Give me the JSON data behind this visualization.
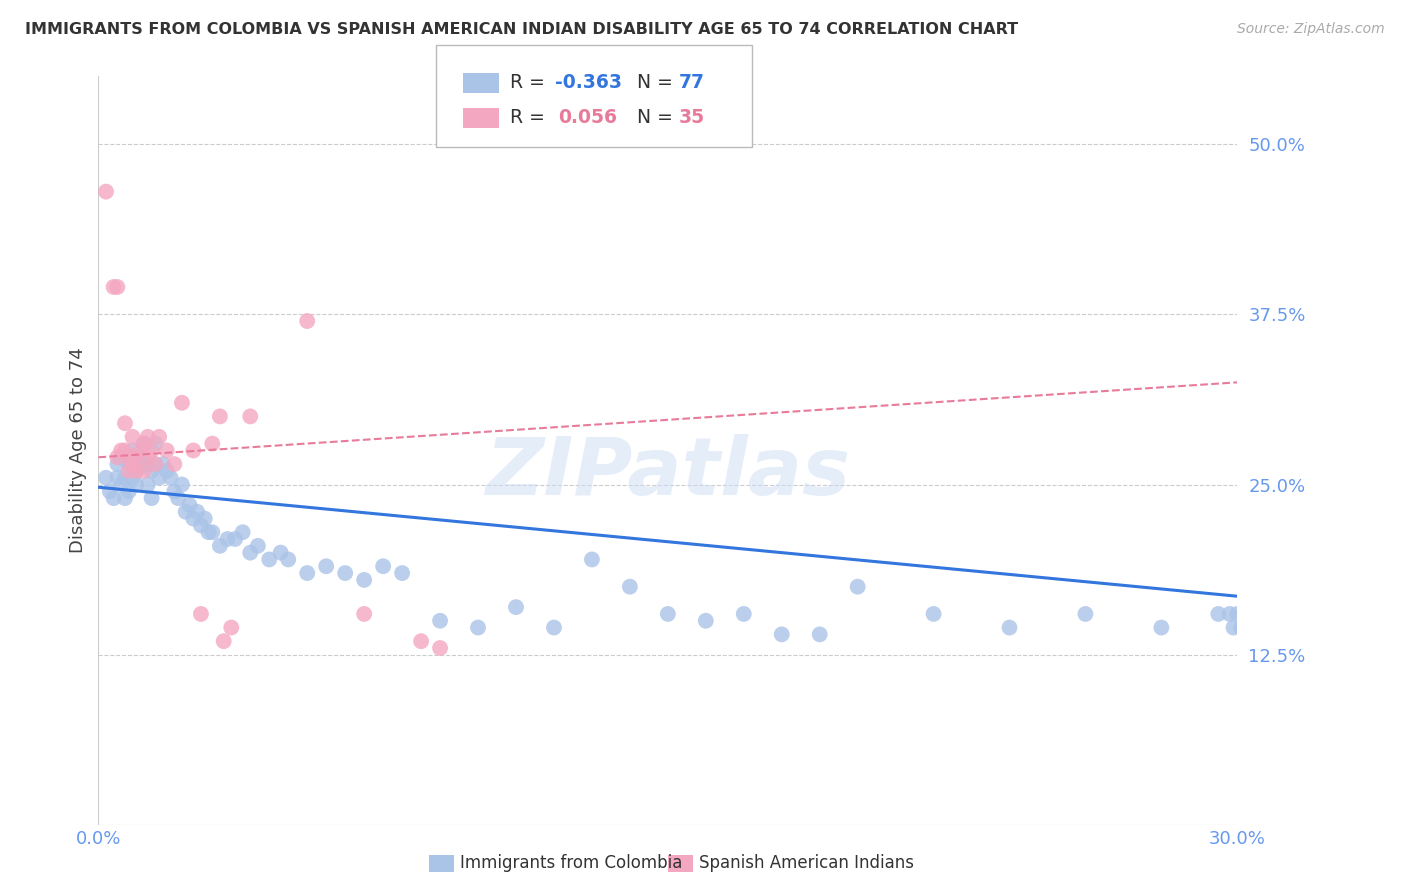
{
  "title": "IMMIGRANTS FROM COLOMBIA VS SPANISH AMERICAN INDIAN DISABILITY AGE 65 TO 74 CORRELATION CHART",
  "source": "Source: ZipAtlas.com",
  "ylabel": "Disability Age 65 to 74",
  "xlim": [
    0.0,
    0.3
  ],
  "ylim": [
    0.0,
    0.55
  ],
  "yticks": [
    0.0,
    0.125,
    0.25,
    0.375,
    0.5
  ],
  "ytick_labels": [
    "",
    "12.5%",
    "25.0%",
    "37.5%",
    "50.0%"
  ],
  "xticks": [
    0.0,
    0.05,
    0.1,
    0.15,
    0.2,
    0.25,
    0.3
  ],
  "xtick_labels": [
    "0.0%",
    "",
    "",
    "",
    "",
    "",
    "30.0%"
  ],
  "blue_R": -0.363,
  "blue_N": 77,
  "pink_R": 0.056,
  "pink_N": 35,
  "blue_color": "#aac4e8",
  "pink_color": "#f4a7c0",
  "blue_line_color": "#3376dd",
  "pink_line_color": "#e87a9a",
  "grid_color": "#cccccc",
  "title_color": "#333333",
  "axis_label_color": "#6699ee",
  "blue_line_x0": 0.0,
  "blue_line_y0": 0.248,
  "blue_line_x1": 0.3,
  "blue_line_y1": 0.168,
  "pink_line_x0": 0.0,
  "pink_line_y0": 0.27,
  "pink_line_x1": 0.3,
  "pink_line_y1": 0.325,
  "blue_scatter_x": [
    0.002,
    0.003,
    0.004,
    0.005,
    0.005,
    0.006,
    0.006,
    0.007,
    0.007,
    0.008,
    0.008,
    0.009,
    0.009,
    0.01,
    0.01,
    0.011,
    0.011,
    0.012,
    0.012,
    0.013,
    0.013,
    0.014,
    0.014,
    0.015,
    0.015,
    0.016,
    0.017,
    0.018,
    0.019,
    0.02,
    0.021,
    0.022,
    0.023,
    0.024,
    0.025,
    0.026,
    0.027,
    0.028,
    0.029,
    0.03,
    0.032,
    0.034,
    0.036,
    0.038,
    0.04,
    0.042,
    0.045,
    0.048,
    0.05,
    0.055,
    0.06,
    0.065,
    0.07,
    0.075,
    0.08,
    0.09,
    0.1,
    0.11,
    0.12,
    0.13,
    0.14,
    0.15,
    0.16,
    0.17,
    0.18,
    0.19,
    0.2,
    0.22,
    0.24,
    0.26,
    0.28,
    0.295,
    0.298,
    0.299,
    0.3,
    0.301,
    0.302
  ],
  "blue_scatter_y": [
    0.255,
    0.245,
    0.24,
    0.265,
    0.255,
    0.25,
    0.27,
    0.255,
    0.24,
    0.245,
    0.265,
    0.255,
    0.275,
    0.26,
    0.25,
    0.265,
    0.27,
    0.265,
    0.28,
    0.265,
    0.25,
    0.26,
    0.24,
    0.265,
    0.28,
    0.255,
    0.265,
    0.26,
    0.255,
    0.245,
    0.24,
    0.25,
    0.23,
    0.235,
    0.225,
    0.23,
    0.22,
    0.225,
    0.215,
    0.215,
    0.205,
    0.21,
    0.21,
    0.215,
    0.2,
    0.205,
    0.195,
    0.2,
    0.195,
    0.185,
    0.19,
    0.185,
    0.18,
    0.19,
    0.185,
    0.15,
    0.145,
    0.16,
    0.145,
    0.195,
    0.175,
    0.155,
    0.15,
    0.155,
    0.14,
    0.14,
    0.175,
    0.155,
    0.145,
    0.155,
    0.145,
    0.155,
    0.155,
    0.145,
    0.155,
    0.145,
    0.155
  ],
  "pink_scatter_x": [
    0.002,
    0.004,
    0.005,
    0.005,
    0.006,
    0.007,
    0.007,
    0.008,
    0.008,
    0.009,
    0.009,
    0.01,
    0.01,
    0.011,
    0.012,
    0.012,
    0.013,
    0.013,
    0.014,
    0.015,
    0.016,
    0.018,
    0.02,
    0.022,
    0.025,
    0.027,
    0.03,
    0.032,
    0.033,
    0.035,
    0.04,
    0.055,
    0.07,
    0.085,
    0.09
  ],
  "pink_scatter_y": [
    0.465,
    0.395,
    0.395,
    0.27,
    0.275,
    0.275,
    0.295,
    0.27,
    0.26,
    0.265,
    0.285,
    0.27,
    0.26,
    0.275,
    0.28,
    0.26,
    0.27,
    0.285,
    0.275,
    0.265,
    0.285,
    0.275,
    0.265,
    0.31,
    0.275,
    0.155,
    0.28,
    0.3,
    0.135,
    0.145,
    0.3,
    0.37,
    0.155,
    0.135,
    0.13
  ],
  "watermark": "ZIPatlas",
  "background_color": "#ffffff"
}
